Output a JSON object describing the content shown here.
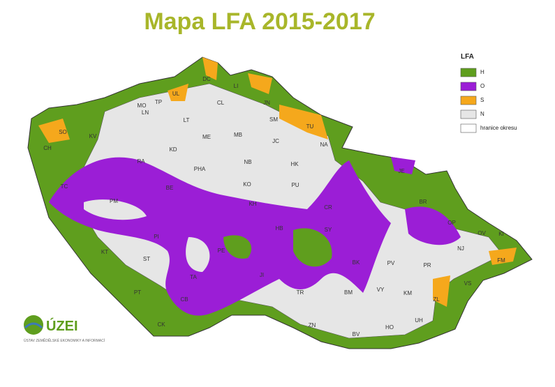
{
  "title": "Mapa LFA 2015-2017",
  "legend": {
    "title": "LFA",
    "items": [
      {
        "label": "H",
        "color": "#5f9e1e"
      },
      {
        "label": "O",
        "color": "#9b1ed6"
      },
      {
        "label": "S",
        "color": "#f5a81c"
      },
      {
        "label": "N",
        "color": "#e6e6e6"
      },
      {
        "label": "hranice okresu",
        "color": "#ffffff"
      }
    ]
  },
  "districts": [
    "DC",
    "UL",
    "LI",
    "JN",
    "MO",
    "TP",
    "CL",
    "LT",
    "LN",
    "SO",
    "KV",
    "CH",
    "SM",
    "TU",
    "NA",
    "ME",
    "MB",
    "JC",
    "KD",
    "RA",
    "PHA",
    "NB",
    "HK",
    "PU",
    "KO",
    "BE",
    "TC",
    "PM",
    "KH",
    "CR",
    "SY",
    "JE",
    "BR",
    "OP",
    "OV",
    "KI",
    "NJ",
    "FM",
    "VS",
    "PR",
    "KM",
    "ZL",
    "UH",
    "HO",
    "VY",
    "BM",
    "BK",
    "PV",
    "PE",
    "TA",
    "KT",
    "ST",
    "PT",
    "PI",
    "CB",
    "CK",
    "TR",
    "JI",
    "HB",
    "ZN",
    "BV"
  ],
  "logo": {
    "name": "ÚZEI",
    "subtitle": "ÚSTAV ZEMĚDĚLSKÉ EKONOMIKY A INFORMACÍ"
  }
}
